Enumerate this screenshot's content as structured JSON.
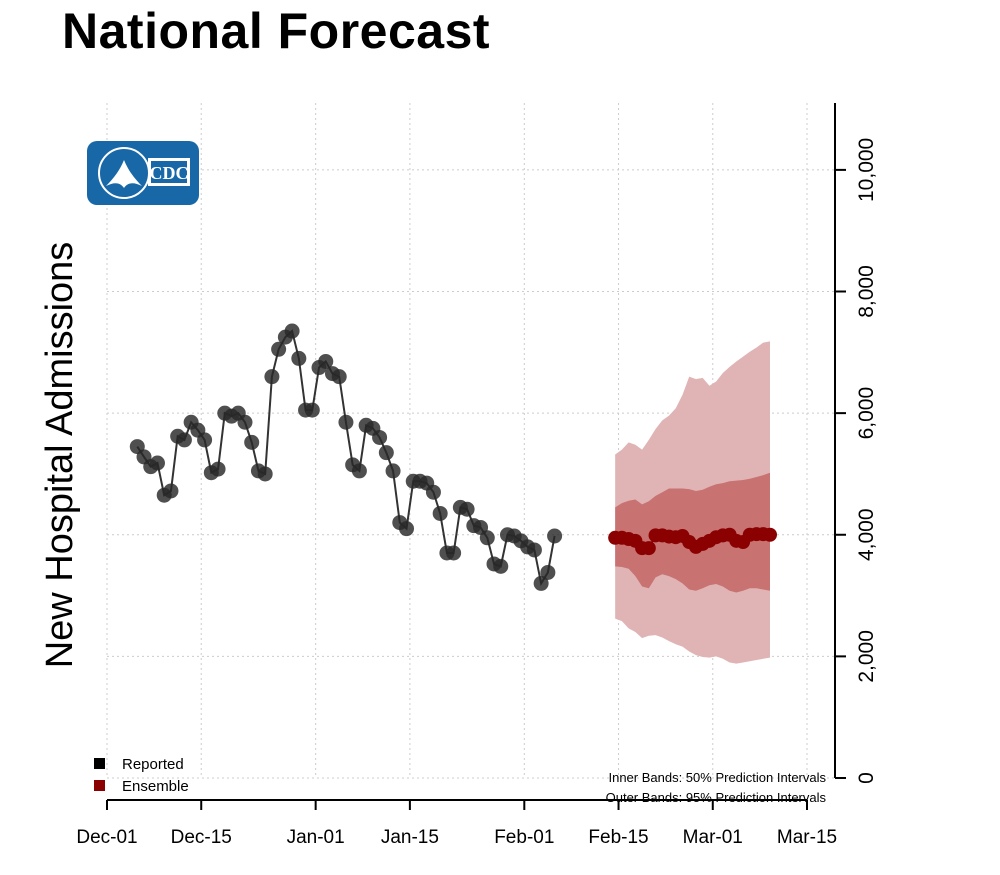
{
  "chart_data": {
    "type": "line",
    "title": "National Forecast",
    "ylabel": "New Hospital Admissions",
    "xlabel": "",
    "x_ticks": [
      "Dec-01",
      "Dec-15",
      "Jan-01",
      "Jan-15",
      "Feb-01",
      "Feb-15",
      "Mar-01",
      "Mar-15"
    ],
    "y_ticks": [
      "0",
      "2,000",
      "4,000",
      "6,000",
      "8,000",
      "10,000"
    ],
    "ylim": [
      0,
      11100
    ],
    "xlim_days": [
      0,
      104
    ],
    "x_origin": "Dec-01",
    "grid": true,
    "legend": [
      {
        "label": "Reported",
        "color": "#000000"
      },
      {
        "label": "Ensemble",
        "color": "#8b0000"
      }
    ],
    "notes": [
      "Inner Bands: 50% Prediction Intervals",
      "Outer Bands: 95% Prediction Intervals"
    ],
    "logo_text": "CDC",
    "series": [
      {
        "name": "Reported",
        "color": "#222222",
        "x": [
          4.5,
          5.5,
          6.5,
          7.5,
          8.5,
          9.5,
          10.5,
          11.5,
          12.5,
          13.5,
          14.5,
          15.5,
          16.5,
          17.5,
          18.5,
          19.5,
          20.5,
          21.5,
          22.5,
          23.5,
          24.5,
          25.5,
          26.5,
          27.5,
          28.5,
          29.5,
          30.5,
          31.5,
          32.5,
          33.5,
          34.5,
          35.5,
          36.5,
          37.5,
          38.5,
          39.5,
          40.5,
          41.5,
          42.5,
          43.5,
          44.5,
          45.5,
          46.5,
          47.5,
          48.5,
          49.5,
          50.5,
          51.5,
          52.5,
          53.5,
          54.5,
          55.5,
          56.5,
          57.5,
          58.5,
          59.5,
          60.5,
          61.5,
          62.5,
          63.5,
          64.5,
          65.5,
          66.5
        ],
        "values": [
          5450,
          5280,
          5120,
          5180,
          4650,
          4720,
          5620,
          5560,
          5850,
          5720,
          5560,
          5020,
          5080,
          6000,
          5950,
          6000,
          5850,
          5520,
          5050,
          5000,
          6600,
          7050,
          7250,
          7350,
          6900,
          6050,
          6050,
          6750,
          6850,
          6650,
          6600,
          5850,
          5150,
          5050,
          5800,
          5750,
          5600,
          5350,
          5050,
          4200,
          4100,
          4880,
          4880,
          4850,
          4700,
          4350,
          3700,
          3700,
          4450,
          4420,
          4150,
          4120,
          3950,
          3520,
          3480,
          4000,
          3980,
          3900,
          3800,
          3750,
          3200,
          3380,
          3980
        ]
      },
      {
        "name": "Ensemble",
        "color": "#8b0000",
        "x": [
          75.5,
          76.5,
          77.5,
          78.5,
          79.5,
          80.5,
          81.5,
          82.5,
          83.5,
          84.5,
          85.5,
          86.5,
          87.5,
          88.5,
          89.5,
          90.5,
          91.5,
          92.5,
          93.5,
          94.5,
          95.5,
          96.5,
          97.5,
          98.5
        ],
        "values": [
          3950,
          3950,
          3930,
          3900,
          3780,
          3780,
          3990,
          3990,
          3970,
          3960,
          3980,
          3880,
          3800,
          3850,
          3900,
          3960,
          3990,
          4000,
          3900,
          3880,
          4000,
          4010,
          4010,
          4000
        ],
        "lower_50": [
          3480,
          3470,
          3440,
          3320,
          3150,
          3120,
          3300,
          3350,
          3320,
          3270,
          3200,
          3100,
          3080,
          3120,
          3170,
          3190,
          3150,
          3080,
          3050,
          3080,
          3120,
          3120,
          3100,
          3080
        ],
        "upper_50": [
          4450,
          4520,
          4560,
          4580,
          4500,
          4550,
          4640,
          4700,
          4760,
          4760,
          4760,
          4750,
          4720,
          4740,
          4790,
          4830,
          4850,
          4880,
          4890,
          4900,
          4920,
          4950,
          4980,
          5020
        ],
        "lower_95": [
          2620,
          2580,
          2460,
          2400,
          2300,
          2340,
          2350,
          2310,
          2250,
          2200,
          2160,
          2080,
          2020,
          1990,
          1980,
          2000,
          1960,
          1900,
          1880,
          1900,
          1920,
          1940,
          1960,
          1980
        ],
        "upper_95": [
          5320,
          5400,
          5520,
          5480,
          5400,
          5560,
          5740,
          5880,
          5960,
          6080,
          6300,
          6600,
          6560,
          6580,
          6450,
          6520,
          6660,
          6760,
          6850,
          6930,
          7010,
          7080,
          7160,
          7180
        ]
      }
    ]
  }
}
